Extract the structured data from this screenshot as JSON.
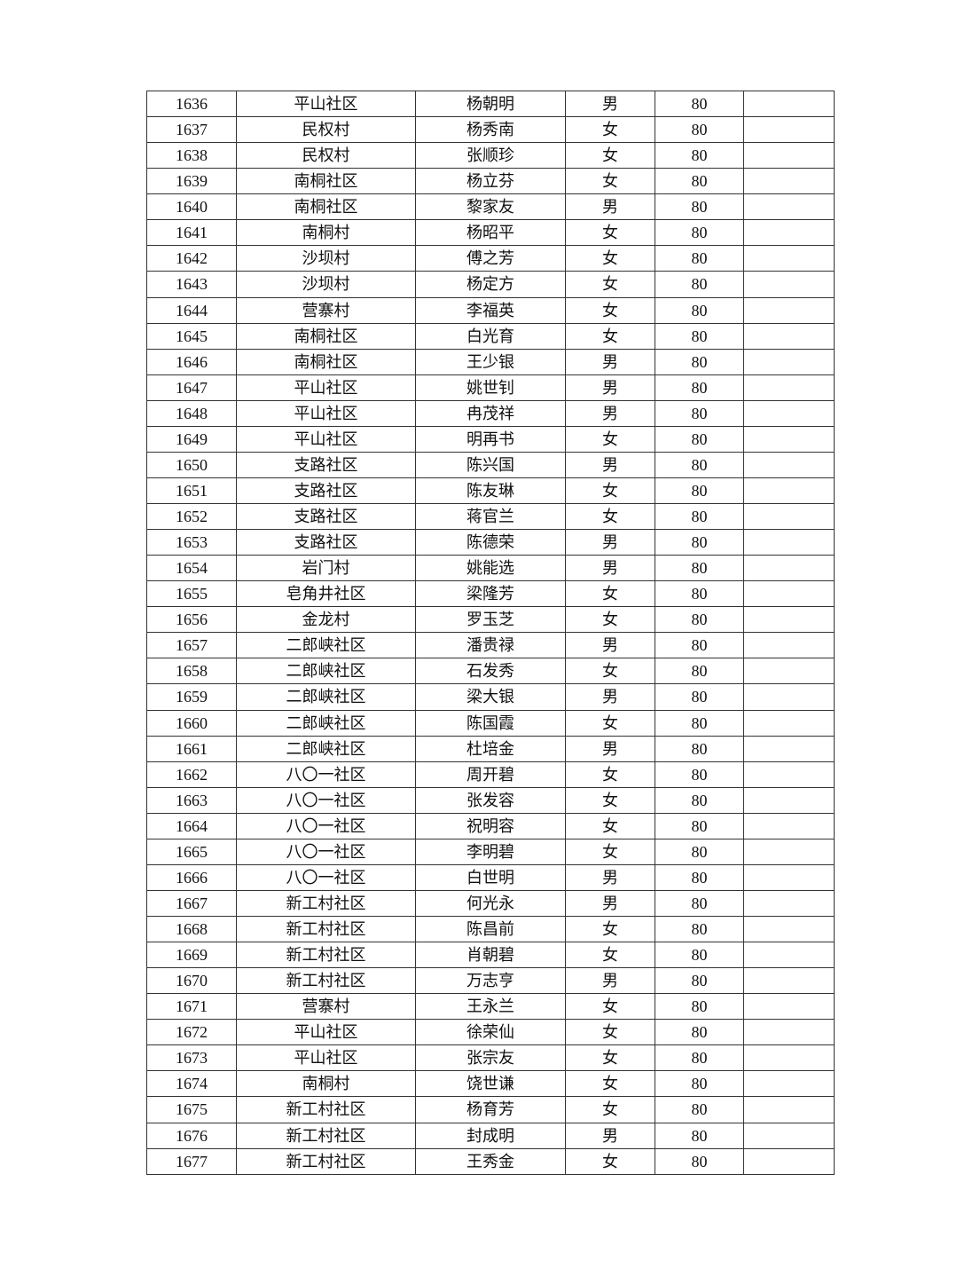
{
  "table": {
    "rows": [
      [
        "1636",
        "平山社区",
        "杨朝明",
        "男",
        "80",
        ""
      ],
      [
        "1637",
        "民权村",
        "杨秀南",
        "女",
        "80",
        ""
      ],
      [
        "1638",
        "民权村",
        "张顺珍",
        "女",
        "80",
        ""
      ],
      [
        "1639",
        "南桐社区",
        "杨立芬",
        "女",
        "80",
        ""
      ],
      [
        "1640",
        "南桐社区",
        "黎家友",
        "男",
        "80",
        ""
      ],
      [
        "1641",
        "南桐村",
        "杨昭平",
        "女",
        "80",
        ""
      ],
      [
        "1642",
        "沙坝村",
        "傅之芳",
        "女",
        "80",
        ""
      ],
      [
        "1643",
        "沙坝村",
        "杨定方",
        "女",
        "80",
        ""
      ],
      [
        "1644",
        "营寨村",
        "李福英",
        "女",
        "80",
        ""
      ],
      [
        "1645",
        "南桐社区",
        "白光育",
        "女",
        "80",
        ""
      ],
      [
        "1646",
        "南桐社区",
        "王少银",
        "男",
        "80",
        ""
      ],
      [
        "1647",
        "平山社区",
        "姚世钊",
        "男",
        "80",
        ""
      ],
      [
        "1648",
        "平山社区",
        "冉茂祥",
        "男",
        "80",
        ""
      ],
      [
        "1649",
        "平山社区",
        "明再书",
        "女",
        "80",
        ""
      ],
      [
        "1650",
        "支路社区",
        "陈兴国",
        "男",
        "80",
        ""
      ],
      [
        "1651",
        "支路社区",
        "陈友琳",
        "女",
        "80",
        ""
      ],
      [
        "1652",
        "支路社区",
        "蒋官兰",
        "女",
        "80",
        ""
      ],
      [
        "1653",
        "支路社区",
        "陈德荣",
        "男",
        "80",
        ""
      ],
      [
        "1654",
        "岩门村",
        "姚能选",
        "男",
        "80",
        ""
      ],
      [
        "1655",
        "皂角井社区",
        "梁隆芳",
        "女",
        "80",
        ""
      ],
      [
        "1656",
        "金龙村",
        "罗玉芝",
        "女",
        "80",
        ""
      ],
      [
        "1657",
        "二郎峡社区",
        "潘贵禄",
        "男",
        "80",
        ""
      ],
      [
        "1658",
        "二郎峡社区",
        "石发秀",
        "女",
        "80",
        ""
      ],
      [
        "1659",
        "二郎峡社区",
        "梁大银",
        "男",
        "80",
        ""
      ],
      [
        "1660",
        "二郎峡社区",
        "陈国霞",
        "女",
        "80",
        ""
      ],
      [
        "1661",
        "二郎峡社区",
        "杜培金",
        "男",
        "80",
        ""
      ],
      [
        "1662",
        "八〇一社区",
        "周开碧",
        "女",
        "80",
        ""
      ],
      [
        "1663",
        "八〇一社区",
        "张发容",
        "女",
        "80",
        ""
      ],
      [
        "1664",
        "八〇一社区",
        "祝明容",
        "女",
        "80",
        ""
      ],
      [
        "1665",
        "八〇一社区",
        "李明碧",
        "女",
        "80",
        ""
      ],
      [
        "1666",
        "八〇一社区",
        "白世明",
        "男",
        "80",
        ""
      ],
      [
        "1667",
        "新工村社区",
        "何光永",
        "男",
        "80",
        ""
      ],
      [
        "1668",
        "新工村社区",
        "陈昌前",
        "女",
        "80",
        ""
      ],
      [
        "1669",
        "新工村社区",
        "肖朝碧",
        "女",
        "80",
        ""
      ],
      [
        "1670",
        "新工村社区",
        "万志亨",
        "男",
        "80",
        ""
      ],
      [
        "1671",
        "营寨村",
        "王永兰",
        "女",
        "80",
        ""
      ],
      [
        "1672",
        "平山社区",
        "徐荣仙",
        "女",
        "80",
        ""
      ],
      [
        "1673",
        "平山社区",
        "张宗友",
        "女",
        "80",
        ""
      ],
      [
        "1674",
        "南桐村",
        "饶世谦",
        "女",
        "80",
        ""
      ],
      [
        "1675",
        "新工村社区",
        "杨育芳",
        "女",
        "80",
        ""
      ],
      [
        "1676",
        "新工村社区",
        "封成明",
        "男",
        "80",
        ""
      ],
      [
        "1677",
        "新工村社区",
        "王秀金",
        "女",
        "80",
        ""
      ]
    ]
  }
}
